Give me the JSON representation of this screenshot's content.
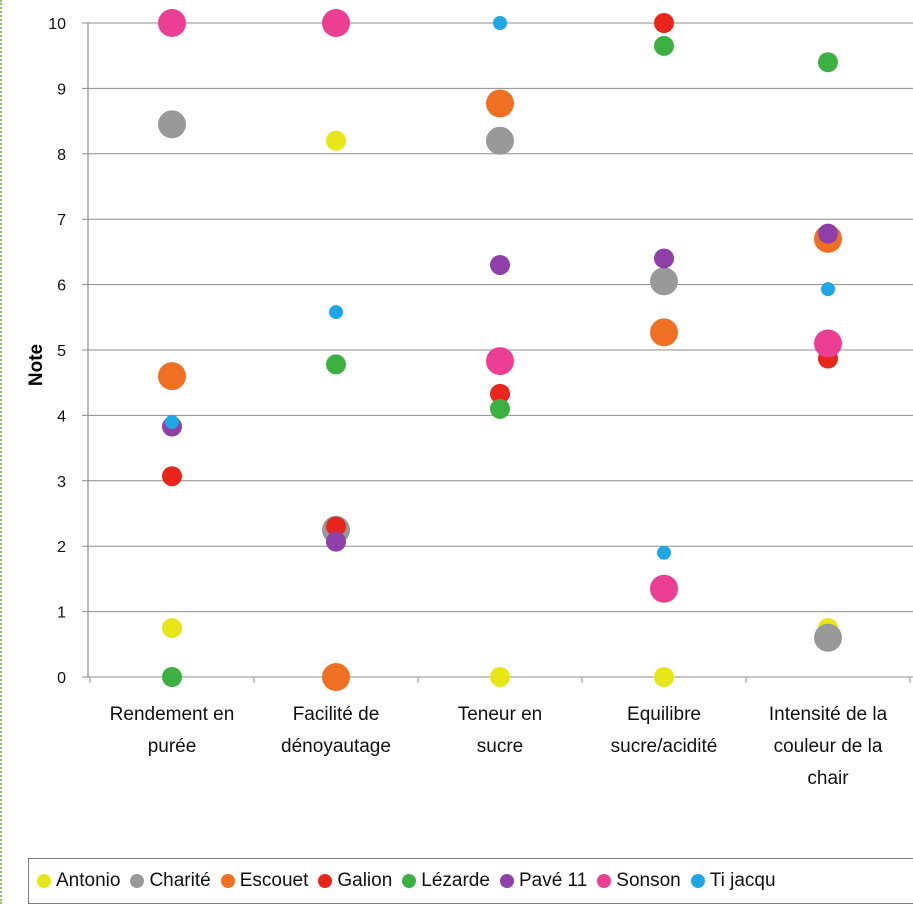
{
  "chart_data": {
    "type": "scatter",
    "ylabel": "Note",
    "ylim": [
      0,
      10
    ],
    "yticks": [
      "0",
      "1",
      "2",
      "3",
      "4",
      "5",
      "6",
      "7",
      "8",
      "9",
      "10"
    ],
    "grid": true,
    "legend_position": "bottom",
    "categories": [
      [
        "Rendement en",
        "purée"
      ],
      [
        "Facilité de",
        "dénoyautage"
      ],
      [
        "Teneur en",
        "sucre"
      ],
      [
        "Equilibre",
        "sucre/acidité"
      ],
      [
        "Intensité de la",
        "couleur de la",
        "chair"
      ]
    ],
    "series": [
      {
        "name": "Antonio",
        "color": "#e6e619",
        "size": "medium",
        "values": [
          0.75,
          8.2,
          0,
          0,
          0.75
        ]
      },
      {
        "name": "Charité",
        "color": "#999999",
        "size": "large",
        "values": [
          8.45,
          2.25,
          8.2,
          6.05,
          0.6
        ]
      },
      {
        "name": "Escouet",
        "color": "#f07023",
        "size": "large",
        "values": [
          4.6,
          0,
          8.77,
          5.27,
          6.7
        ]
      },
      {
        "name": "Galion",
        "color": "#e8261c",
        "size": "medium",
        "values": [
          3.07,
          2.3,
          4.33,
          10,
          4.87
        ]
      },
      {
        "name": "Lézarde",
        "color": "#3cb043",
        "size": "medium",
        "values": [
          0,
          4.78,
          4.1,
          9.65,
          9.4
        ]
      },
      {
        "name": "Pavé 11",
        "color": "#8e3fa8",
        "size": "medium",
        "values": [
          3.83,
          2.07,
          6.3,
          6.4,
          6.78
        ]
      },
      {
        "name": "Sonson",
        "color": "#ec3f93",
        "size": "large",
        "values": [
          10,
          10,
          4.83,
          1.35,
          5.1
        ]
      },
      {
        "name": "Ti jacques",
        "legend_label": "Ti jacqu",
        "color": "#1ea6e6",
        "size": "small",
        "values": [
          3.9,
          5.58,
          10,
          1.9,
          5.93
        ]
      }
    ]
  }
}
